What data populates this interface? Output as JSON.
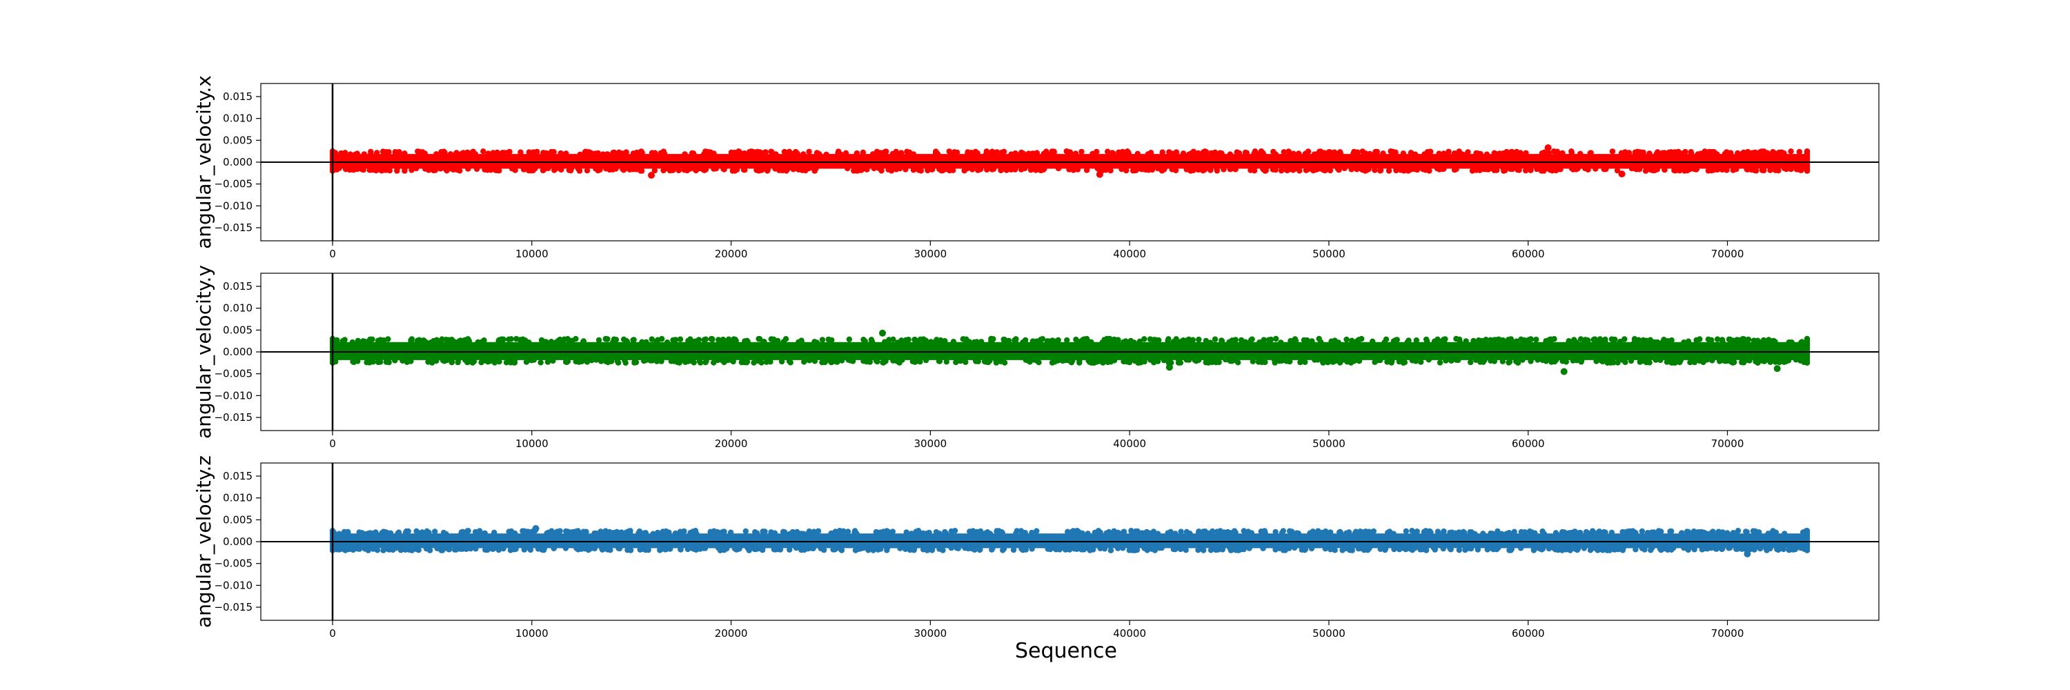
{
  "chart_data": {
    "type": "scatter",
    "xlabel": "Sequence",
    "xlim": [
      -3600,
      77600
    ],
    "ylim": [
      -0.018,
      0.018
    ],
    "x_ticks": [
      0,
      10000,
      20000,
      30000,
      40000,
      50000,
      60000,
      70000
    ],
    "x_tick_labels": [
      "0",
      "10000",
      "20000",
      "30000",
      "40000",
      "50000",
      "60000",
      "70000"
    ],
    "y_ticks": [
      0.015,
      0.01,
      0.005,
      0.0,
      -0.005,
      -0.01,
      -0.015
    ],
    "y_tick_labels": [
      "0.015",
      "0.010",
      "0.005",
      "0.000",
      "−0.005",
      "−0.010",
      "−0.015"
    ],
    "grid": false,
    "reference_lines": {
      "x": 0,
      "y": 0
    },
    "x_range_of_points": [
      0,
      74000
    ],
    "subplots": [
      {
        "ylabel": "angular_velocity.x",
        "color": "#ff0000",
        "band": [
          -0.002,
          0.0025
        ],
        "outliers": [
          {
            "x": 61000,
            "y": 0.0033
          },
          {
            "x": 16000,
            "y": -0.003
          },
          {
            "x": 38500,
            "y": -0.0028
          },
          {
            "x": 64700,
            "y": -0.0027
          }
        ]
      },
      {
        "ylabel": "angular_velocity.y",
        "color": "#008000",
        "band": [
          -0.0025,
          0.003
        ],
        "outliers": [
          {
            "x": 27600,
            "y": 0.0043
          },
          {
            "x": 61800,
            "y": -0.0045
          },
          {
            "x": 72500,
            "y": -0.0038
          },
          {
            "x": 42000,
            "y": -0.0035
          }
        ]
      },
      {
        "ylabel": "angular_velocity.z",
        "color": "#1f77b4",
        "band": [
          -0.002,
          0.0025
        ],
        "outliers": [
          {
            "x": 10200,
            "y": 0.003
          },
          {
            "x": 71000,
            "y": -0.0028
          }
        ]
      }
    ]
  }
}
